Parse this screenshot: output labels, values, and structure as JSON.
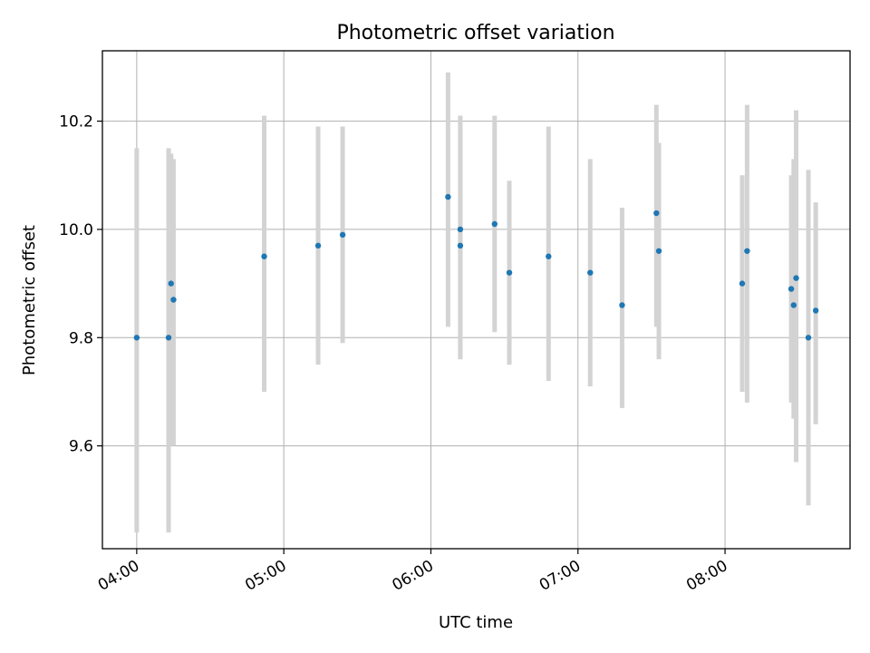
{
  "chart_data": {
    "type": "scatter",
    "title": "Photometric offset variation",
    "xlabel": "UTC time",
    "ylabel": "Photometric offset",
    "x_tick_labels": [
      "04:00",
      "05:00",
      "06:00",
      "07:00",
      "08:00"
    ],
    "y_ticks": [
      9.6,
      9.8,
      10.0,
      10.2
    ],
    "y_tick_labels": [
      "9.6",
      "9.8",
      "10.0",
      "10.2"
    ],
    "xlim": [
      "03:46",
      "08:51"
    ],
    "ylim": [
      9.41,
      10.33
    ],
    "grid": true,
    "marker_color": "#1f77b4",
    "errorbar_color": "#d3d3d3",
    "series": [
      {
        "points": [
          {
            "x": "04:00",
            "y": 9.8,
            "yerr_low": 9.44,
            "yerr_high": 10.15
          },
          {
            "x": "04:13",
            "y": 9.8,
            "yerr_low": 9.44,
            "yerr_high": 10.15
          },
          {
            "x": "04:14",
            "y": 9.9,
            "yerr_low": 9.6,
            "yerr_high": 10.14
          },
          {
            "x": "04:15",
            "y": 9.87,
            "yerr_low": 9.6,
            "yerr_high": 10.13
          },
          {
            "x": "04:52",
            "y": 9.95,
            "yerr_low": 9.7,
            "yerr_high": 10.21
          },
          {
            "x": "05:14",
            "y": 9.97,
            "yerr_low": 9.75,
            "yerr_high": 10.19
          },
          {
            "x": "05:24",
            "y": 9.99,
            "yerr_low": 9.79,
            "yerr_high": 10.19
          },
          {
            "x": "06:07",
            "y": 10.06,
            "yerr_low": 9.82,
            "yerr_high": 10.29
          },
          {
            "x": "06:12",
            "y": 10.0,
            "yerr_low": 9.76,
            "yerr_high": 10.21
          },
          {
            "x": "06:12",
            "y": 9.97,
            "yerr_low": 9.76,
            "yerr_high": 10.21
          },
          {
            "x": "06:26",
            "y": 10.01,
            "yerr_low": 9.81,
            "yerr_high": 10.21
          },
          {
            "x": "06:32",
            "y": 9.92,
            "yerr_low": 9.75,
            "yerr_high": 10.09
          },
          {
            "x": "06:48",
            "y": 9.95,
            "yerr_low": 9.72,
            "yerr_high": 10.19
          },
          {
            "x": "07:05",
            "y": 9.92,
            "yerr_low": 9.71,
            "yerr_high": 10.13
          },
          {
            "x": "07:18",
            "y": 9.86,
            "yerr_low": 9.67,
            "yerr_high": 10.04
          },
          {
            "x": "07:32",
            "y": 10.03,
            "yerr_low": 9.82,
            "yerr_high": 10.23
          },
          {
            "x": "07:33",
            "y": 9.96,
            "yerr_low": 9.76,
            "yerr_high": 10.16
          },
          {
            "x": "08:07",
            "y": 9.9,
            "yerr_low": 9.7,
            "yerr_high": 10.1
          },
          {
            "x": "08:09",
            "y": 9.96,
            "yerr_low": 9.68,
            "yerr_high": 10.23
          },
          {
            "x": "08:27",
            "y": 9.89,
            "yerr_low": 9.68,
            "yerr_high": 10.1
          },
          {
            "x": "08:28",
            "y": 9.86,
            "yerr_low": 9.65,
            "yerr_high": 10.13
          },
          {
            "x": "08:29",
            "y": 9.91,
            "yerr_low": 9.57,
            "yerr_high": 10.22
          },
          {
            "x": "08:34",
            "y": 9.8,
            "yerr_low": 9.49,
            "yerr_high": 10.11
          },
          {
            "x": "08:37",
            "y": 9.85,
            "yerr_low": 9.64,
            "yerr_high": 10.05
          }
        ]
      }
    ]
  }
}
